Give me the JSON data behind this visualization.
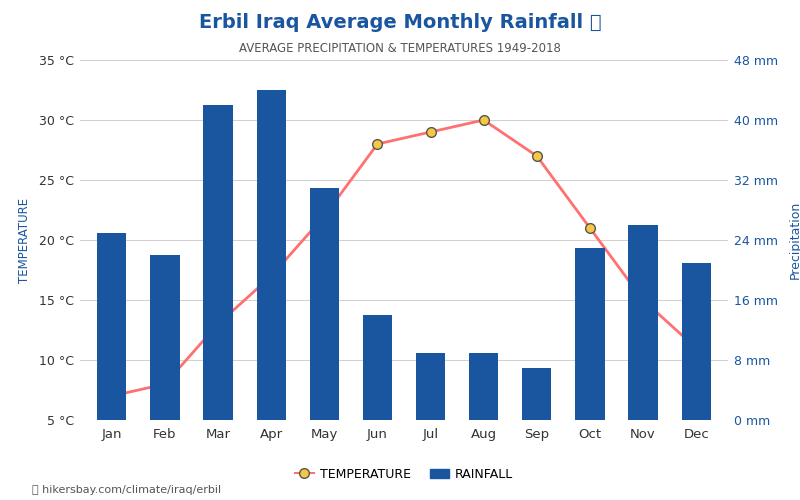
{
  "title": "Erbil Iraq Average Monthly Rainfall 🌧",
  "subtitle": "AVERAGE PRECIPITATION & TEMPERATURES 1949-2018",
  "months": [
    "Jan",
    "Feb",
    "Mar",
    "Apr",
    "May",
    "Jun",
    "Jul",
    "Aug",
    "Sep",
    "Oct",
    "Nov",
    "Dec"
  ],
  "rainfall_mm": [
    25,
    22,
    42,
    44,
    31,
    14,
    9,
    9,
    7,
    23,
    26,
    21
  ],
  "temperature_c": [
    7,
    8,
    13,
    17,
    22,
    28,
    29,
    30,
    27,
    21,
    15,
    11
  ],
  "bar_color": "#1a56a0",
  "line_color": "#ff7070",
  "marker_face": "#f5c842",
  "marker_edge": "#555555",
  "title_color": "#1a56a0",
  "subtitle_color": "#555555",
  "axis_label_color": "#1a56a0",
  "right_axis_color": "#1a56a0",
  "temp_ylim": [
    5,
    35
  ],
  "temp_yticks": [
    5,
    10,
    15,
    20,
    25,
    30,
    35
  ],
  "rain_ylim": [
    0,
    48
  ],
  "rain_yticks": [
    0,
    8,
    16,
    24,
    32,
    40,
    48
  ],
  "ylabel_left": "TEMPERATURE",
  "ylabel_right": "Precipitation",
  "footer_text": "hikersbay.com/climate/iraq/erbil",
  "background_color": "#ffffff",
  "grid_color": "#d0d0d0"
}
